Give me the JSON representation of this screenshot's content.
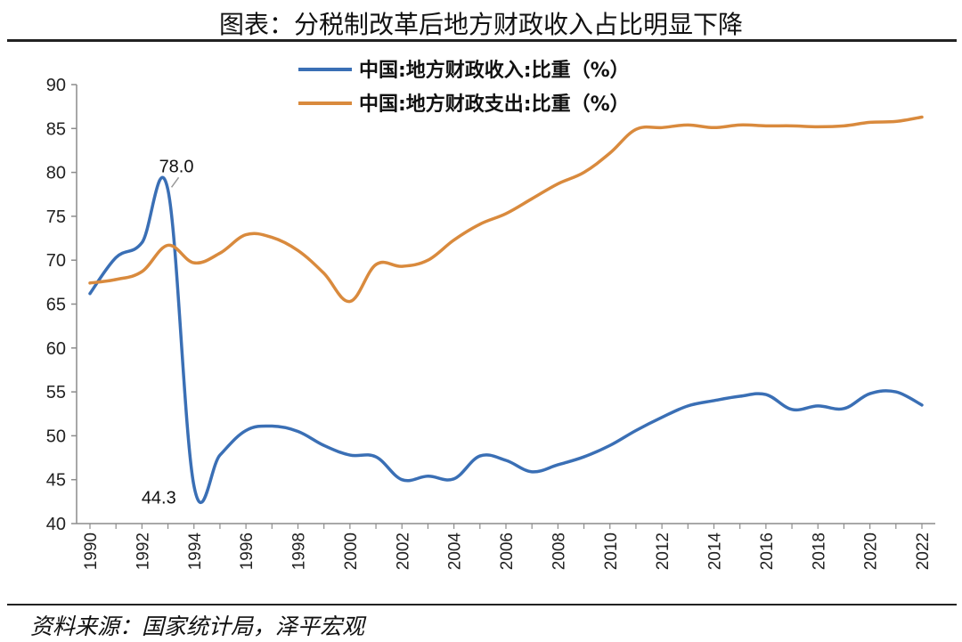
{
  "title": "图表：分税制改革后地方财政收入占比明显下降",
  "source": "资料来源：国家统计局，泽平宏观",
  "chart_data": {
    "type": "line",
    "title": "图表：分税制改革后地方财政收入占比明显下降",
    "xlabel": "",
    "ylabel": "",
    "ylim": [
      40,
      90
    ],
    "yticks": [
      "40",
      "45",
      "50",
      "55",
      "60",
      "65",
      "70",
      "75",
      "80",
      "85",
      "90"
    ],
    "xticks": [
      "1990",
      "1992",
      "1994",
      "1996",
      "1998",
      "2000",
      "2002",
      "2004",
      "2006",
      "2008",
      "2010",
      "2012",
      "2014",
      "2016",
      "2018",
      "2020",
      "2022"
    ],
    "legend_position": "top",
    "grid": false,
    "x": [
      1990,
      1991,
      1992,
      1993,
      1994,
      1995,
      1996,
      1997,
      1998,
      1999,
      2000,
      2001,
      2002,
      2003,
      2004,
      2005,
      2006,
      2007,
      2008,
      2009,
      2010,
      2011,
      2012,
      2013,
      2014,
      2015,
      2016,
      2017,
      2018,
      2019,
      2020,
      2021,
      2022
    ],
    "series": [
      {
        "name": "中国:地方财政收入:比重（%）",
        "color": "#3a6fb5",
        "values": [
          66.2,
          70.3,
          72.0,
          78.0,
          44.3,
          47.8,
          50.6,
          51.1,
          50.5,
          48.9,
          47.8,
          47.6,
          45.0,
          45.4,
          45.1,
          47.7,
          47.2,
          45.9,
          46.7,
          47.6,
          48.9,
          50.6,
          52.1,
          53.4,
          54.0,
          54.5,
          54.7,
          53.0,
          53.4,
          53.1,
          54.8,
          55.0,
          53.5
        ]
      },
      {
        "name": "中国:地方财政支出:比重（%）",
        "color": "#d98a3d",
        "values": [
          67.4,
          67.8,
          68.7,
          71.7,
          69.7,
          70.8,
          72.9,
          72.6,
          71.1,
          68.5,
          65.3,
          69.5,
          69.3,
          70.0,
          72.3,
          74.1,
          75.3,
          77.0,
          78.7,
          80.0,
          82.2,
          84.9,
          85.1,
          85.4,
          85.1,
          85.4,
          85.3,
          85.3,
          85.2,
          85.3,
          85.7,
          85.8,
          86.3
        ]
      }
    ],
    "annotations": [
      {
        "text": "78.0",
        "x": 1993,
        "y": 78.0
      },
      {
        "text": "44.3",
        "x": 1994,
        "y": 44.3
      }
    ]
  }
}
